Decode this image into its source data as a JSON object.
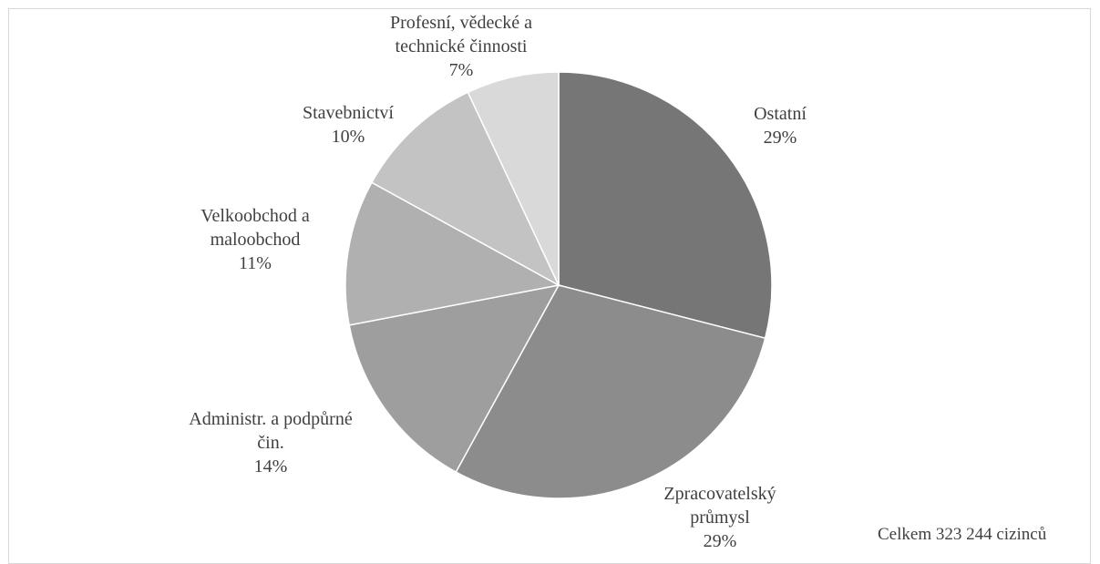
{
  "chart_data": {
    "type": "pie",
    "title": "",
    "slices": [
      {
        "label_lines": [
          "Ostatní"
        ],
        "pct_label": "29%",
        "value": 29,
        "color": "#767676"
      },
      {
        "label_lines": [
          "Zpracovatelský",
          "průmysl"
        ],
        "pct_label": "29%",
        "value": 29,
        "color": "#8c8c8c"
      },
      {
        "label_lines": [
          "Administr. a podpůrné",
          "čin."
        ],
        "pct_label": "14%",
        "value": 14,
        "color": "#9e9e9e"
      },
      {
        "label_lines": [
          "Velkoobchod a",
          "maloobchod"
        ],
        "pct_label": "11%",
        "value": 11,
        "color": "#b0b0b0"
      },
      {
        "label_lines": [
          "Stavebnictví"
        ],
        "pct_label": "10%",
        "value": 10,
        "color": "#c3c3c3"
      },
      {
        "label_lines": [
          "Profesní, vědecké a",
          "technické činnosti"
        ],
        "pct_label": "7%",
        "value": 7,
        "color": "#d9d9d9"
      }
    ],
    "legend": "none",
    "start_angle": "12 o'clock, clockwise"
  },
  "footnote": "Celkem 323 244 cizinců"
}
